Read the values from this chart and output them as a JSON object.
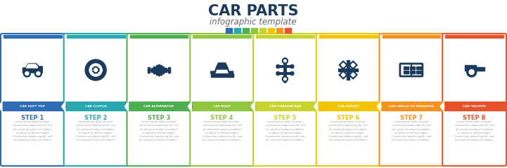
{
  "title": "CAR PARTS",
  "subtitle": "infographic template",
  "title_color": "#1b3a5c",
  "subtitle_color": "#666666",
  "steps": [
    {
      "label": "CAR SOFT TOP",
      "step": "STEP 1",
      "color": "#2e6db4"
    },
    {
      "label": "CAR CLUTCH",
      "step": "STEP 2",
      "color": "#29a8b0"
    },
    {
      "label": "CAR ALTERNATOR",
      "step": "STEP 3",
      "color": "#4caf50"
    },
    {
      "label": "CAR ROOF",
      "step": "STEP 4",
      "color": "#8ec63f"
    },
    {
      "label": "CAR TORSION BAR",
      "step": "STEP 5",
      "color": "#c8d42e"
    },
    {
      "label": "CAR GASKET",
      "step": "STEP 6",
      "color": "#f5c400"
    },
    {
      "label": "CAR GRILLE OR RADIATOR",
      "step": "STEP 7",
      "color": "#f5921e"
    },
    {
      "label": "CAR TAILPIPE",
      "step": "STEP 8",
      "color": "#e8522a"
    }
  ],
  "dot_colors": [
    "#2e6db4",
    "#29a8b0",
    "#4caf50",
    "#8ec63f",
    "#c8d42e",
    "#f5c400",
    "#f5921e",
    "#e8522a"
  ],
  "icon_color": "#1b3a5c",
  "bg_color": "#ffffff"
}
